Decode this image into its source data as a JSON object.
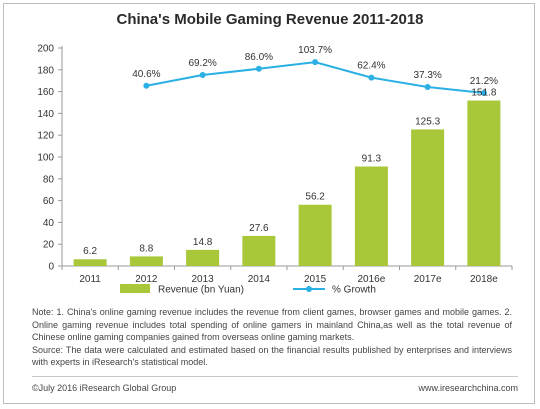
{
  "chart_data": {
    "type": "bar",
    "title": "China's Mobile Gaming Revenue 2011-2018",
    "categories": [
      "2011",
      "2012",
      "2013",
      "2014",
      "2015",
      "2016e",
      "2017e",
      "2018e"
    ],
    "ylim": [
      0,
      200
    ],
    "yticks": [
      "0",
      "20",
      "40",
      "60",
      "80",
      "100",
      "120",
      "140",
      "160",
      "180",
      "200"
    ],
    "series": [
      {
        "name": "Revenue (bn Yuan)",
        "kind": "bar",
        "color": "#a8c83a",
        "values": [
          6.2,
          8.8,
          14.8,
          27.6,
          56.2,
          91.3,
          125.3,
          151.8
        ],
        "labels": [
          "6.2",
          "8.8",
          "14.8",
          "27.6",
          "56.2",
          "91.3",
          "125.3",
          "151.8"
        ]
      },
      {
        "name": "% Growth",
        "kind": "line",
        "color": "#2ab0e4",
        "values": [
          null,
          40.6,
          69.2,
          86.0,
          103.7,
          62.4,
          37.3,
          21.2
        ],
        "labels": [
          "",
          "40.6%",
          "69.2%",
          "86.0%",
          "103.7%",
          "62.4%",
          "37.3%",
          "21.2%"
        ]
      }
    ],
    "grid": false,
    "legend": "bottom"
  },
  "notes": {
    "line1": "Note: 1. China's online gaming revenue includes the revenue from client games, browser games and mobile games. 2. Online gaming revenue includes total spending of online gamers in mainland China,as well as the total revenue of Chinese online gaming companies gained from overseas online gaming markets.",
    "line2": "Source: The data were calculated and estimated based on the financial results published by enterprises and interviews with experts in iResearch's statistical model."
  },
  "footer": {
    "copyright": "©July 2016 iResearch Global Group",
    "website": "www.iresearchchina.com"
  }
}
